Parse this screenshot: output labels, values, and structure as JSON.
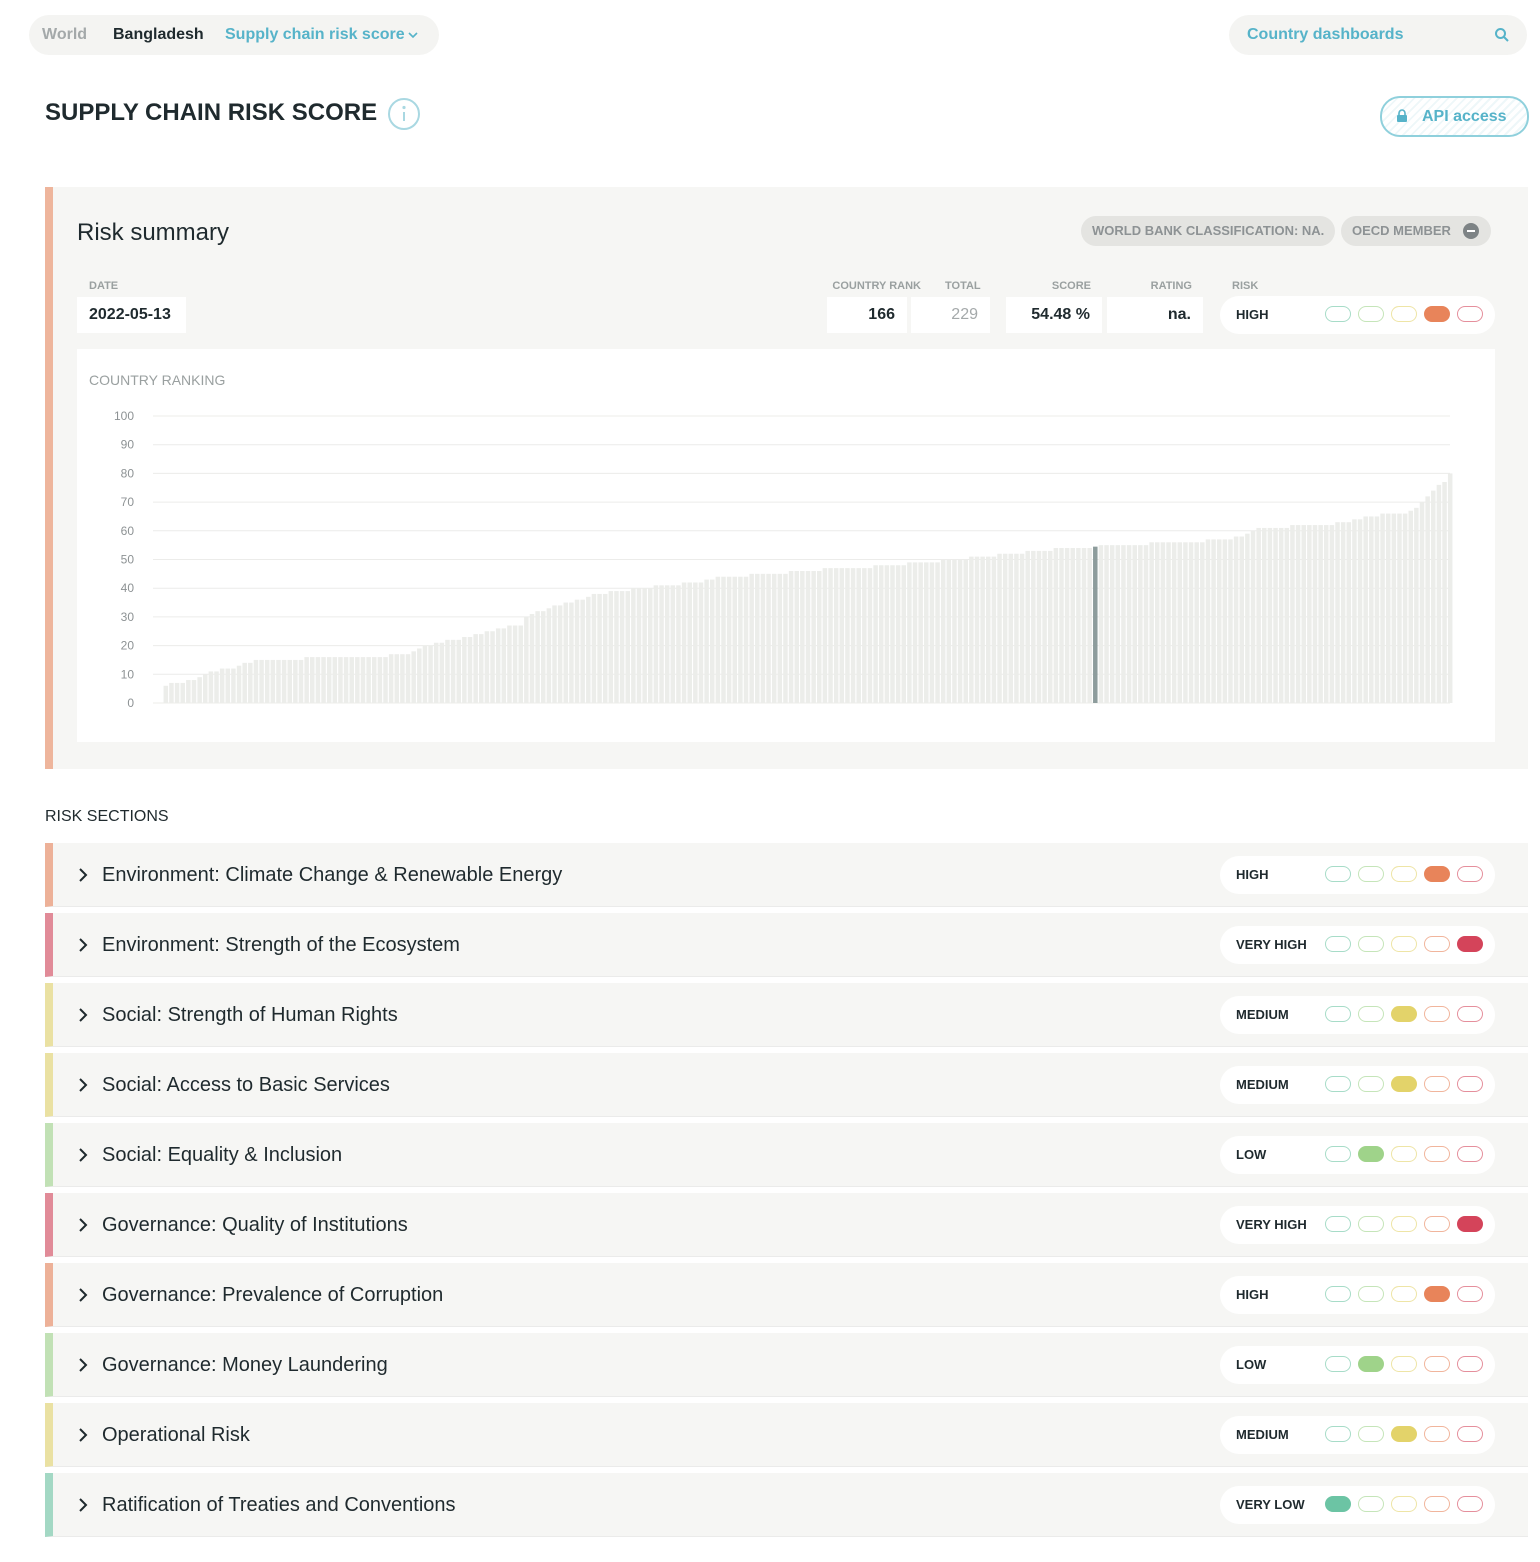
{
  "breadcrumb": [
    "World",
    "Bangladesh",
    "Supply chain risk score"
  ],
  "search": "Country dashboards",
  "title": "SUPPLY CHAIN RISK SCORE",
  "api_button": "API access",
  "risk_colors": [
    "#6cc4a4",
    "#9fd38a",
    "#e3d36a",
    "#e8845a",
    "#d4445a"
  ],
  "summary": {
    "title": "Risk summary",
    "badges": [
      "WORLD BANK CLASSIFICATION: NA.",
      "OECD MEMBER"
    ],
    "date": {
      "label": "DATE",
      "value": "2022-05-13"
    },
    "country_rank": {
      "label": "COUNTRY RANK",
      "value": 166
    },
    "total": {
      "label": "TOTAL",
      "value": 229
    },
    "score": {
      "label": "SCORE",
      "value": "54.48 %"
    },
    "rating": {
      "label": "RATING",
      "value": "na."
    },
    "risk": {
      "label": "RISK",
      "value": "HIGH",
      "level": 4
    }
  },
  "chart_data": {
    "type": "bar",
    "title": "COUNTRY RANKING",
    "color": "#ecedea",
    "highlight_color": "#8d9c9c",
    "grid": true,
    "ylim": [
      0,
      100
    ],
    "yticks": [
      0,
      10,
      20,
      30,
      40,
      50,
      60,
      70,
      80,
      90,
      100
    ],
    "values": [
      6,
      7,
      7,
      7,
      8,
      8,
      9,
      10,
      11,
      11,
      12,
      12,
      12,
      13,
      14,
      14,
      15,
      15,
      15,
      15,
      15,
      15,
      15,
      15,
      15,
      16,
      16,
      16,
      16,
      16,
      16,
      16,
      16,
      16,
      16,
      16,
      16,
      16,
      16,
      16,
      17,
      17,
      17,
      17,
      18,
      19,
      20,
      20,
      21,
      21,
      22,
      22,
      22,
      23,
      23,
      24,
      24,
      25,
      25,
      26,
      26,
      27,
      27,
      27,
      30,
      31,
      32,
      32,
      33,
      34,
      34,
      35,
      35,
      36,
      36,
      37,
      38,
      38,
      38,
      39,
      39,
      39,
      39,
      40,
      40,
      40,
      40,
      41,
      41,
      41,
      41,
      41,
      42,
      42,
      42,
      42,
      43,
      43,
      44,
      44,
      44,
      44,
      44,
      44,
      45,
      45,
      45,
      45,
      45,
      45,
      45,
      46,
      46,
      46,
      46,
      46,
      46,
      47,
      47,
      47,
      47,
      47,
      47,
      47,
      47,
      47,
      48,
      48,
      48,
      48,
      48,
      48,
      49,
      49,
      49,
      49,
      49,
      49,
      50,
      50,
      50,
      50,
      50,
      51,
      51,
      51,
      51,
      51,
      52,
      52,
      52,
      52,
      52,
      53,
      53,
      53,
      53,
      53,
      54,
      54,
      54,
      54,
      54,
      54,
      54,
      54.48,
      55,
      55,
      55,
      55,
      55,
      55,
      55,
      55,
      55,
      56,
      56,
      56,
      56,
      56,
      56,
      56,
      56,
      56,
      56,
      57,
      57,
      57,
      57,
      57,
      58,
      58,
      59,
      60,
      61,
      61,
      61,
      61,
      61,
      61,
      62,
      62,
      62,
      62,
      62,
      62,
      62,
      62,
      63,
      63,
      63,
      64,
      64,
      65,
      65,
      65,
      66,
      66,
      66,
      66,
      66,
      67,
      68,
      70,
      72,
      74,
      76,
      77,
      80
    ]
  },
  "sections": {
    "title": "RISK SECTIONS",
    "items": [
      {
        "name": "Environment: Climate Change & Renewable Energy",
        "risk": "HIGH",
        "level": 4
      },
      {
        "name": "Environment: Strength of the Ecosystem",
        "risk": "VERY HIGH",
        "level": 5
      },
      {
        "name": "Social: Strength of Human Rights",
        "risk": "MEDIUM",
        "level": 3
      },
      {
        "name": "Social: Access to Basic Services",
        "risk": "MEDIUM",
        "level": 3
      },
      {
        "name": "Social: Equality & Inclusion",
        "risk": "LOW",
        "level": 2
      },
      {
        "name": "Governance: Quality of Institutions",
        "risk": "VERY HIGH",
        "level": 5
      },
      {
        "name": "Governance: Prevalence of Corruption",
        "risk": "HIGH",
        "level": 4
      },
      {
        "name": "Governance: Money Laundering",
        "risk": "LOW",
        "level": 2
      },
      {
        "name": "Operational Risk",
        "risk": "MEDIUM",
        "level": 3
      },
      {
        "name": "Ratification of Treaties and Conventions",
        "risk": "VERY LOW",
        "level": 1
      }
    ]
  }
}
